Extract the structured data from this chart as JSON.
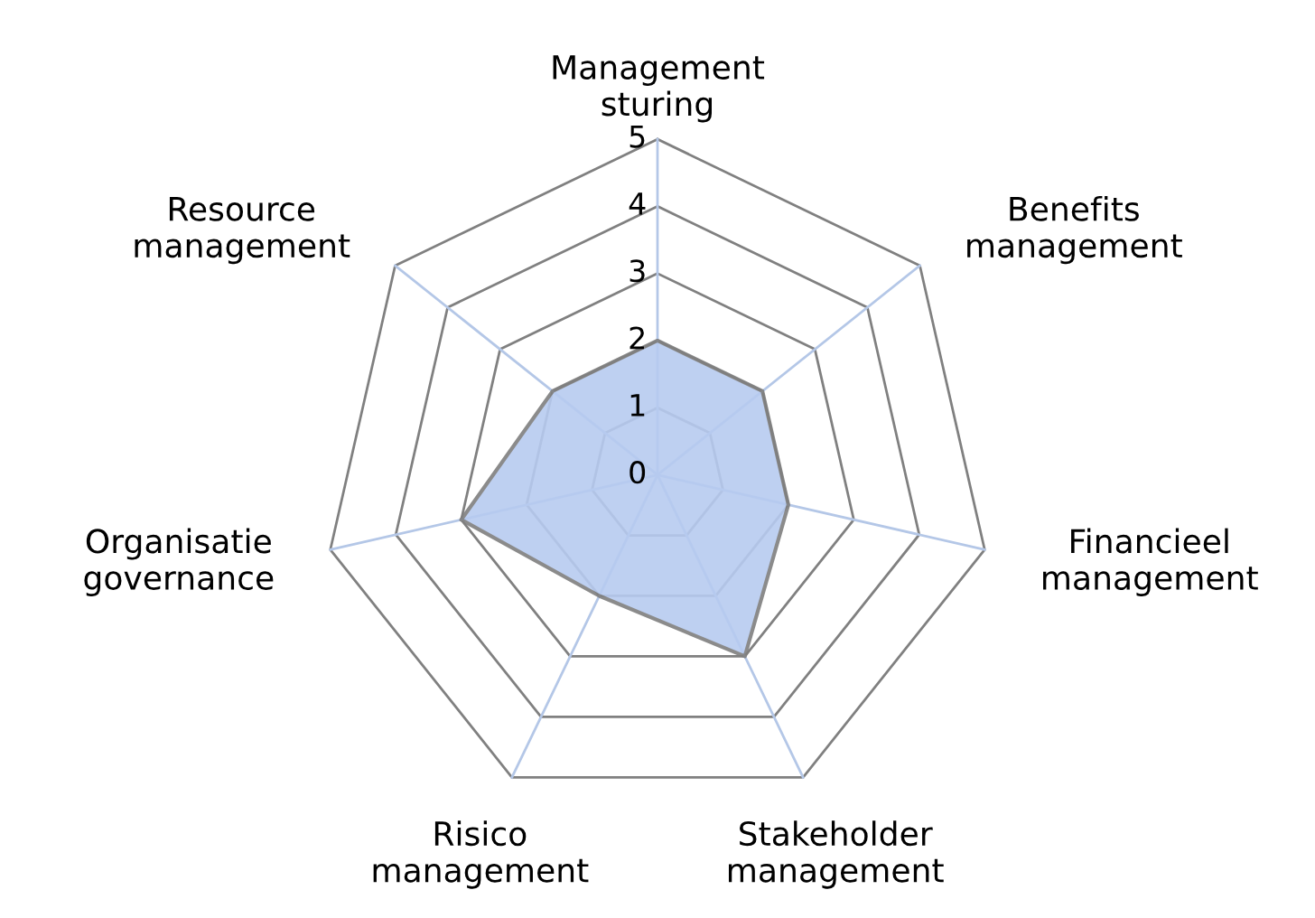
{
  "chart_data": {
    "type": "radar",
    "categories": [
      "Management\nsturing",
      "Benefits\nmanagement",
      "Financieel\nmanagement",
      "Stakeholder\nmanagement",
      "Risico\nmanagement",
      "Organisatie\ngovernance",
      "Resource\nmanagement"
    ],
    "series": [
      {
        "color": "#b7cbf0",
        "values": [
          2,
          2,
          2,
          3,
          2,
          3,
          2
        ]
      }
    ],
    "ylim": [
      0,
      5
    ],
    "yticks": [
      0,
      1,
      2,
      3,
      4,
      5
    ],
    "grid": true
  }
}
